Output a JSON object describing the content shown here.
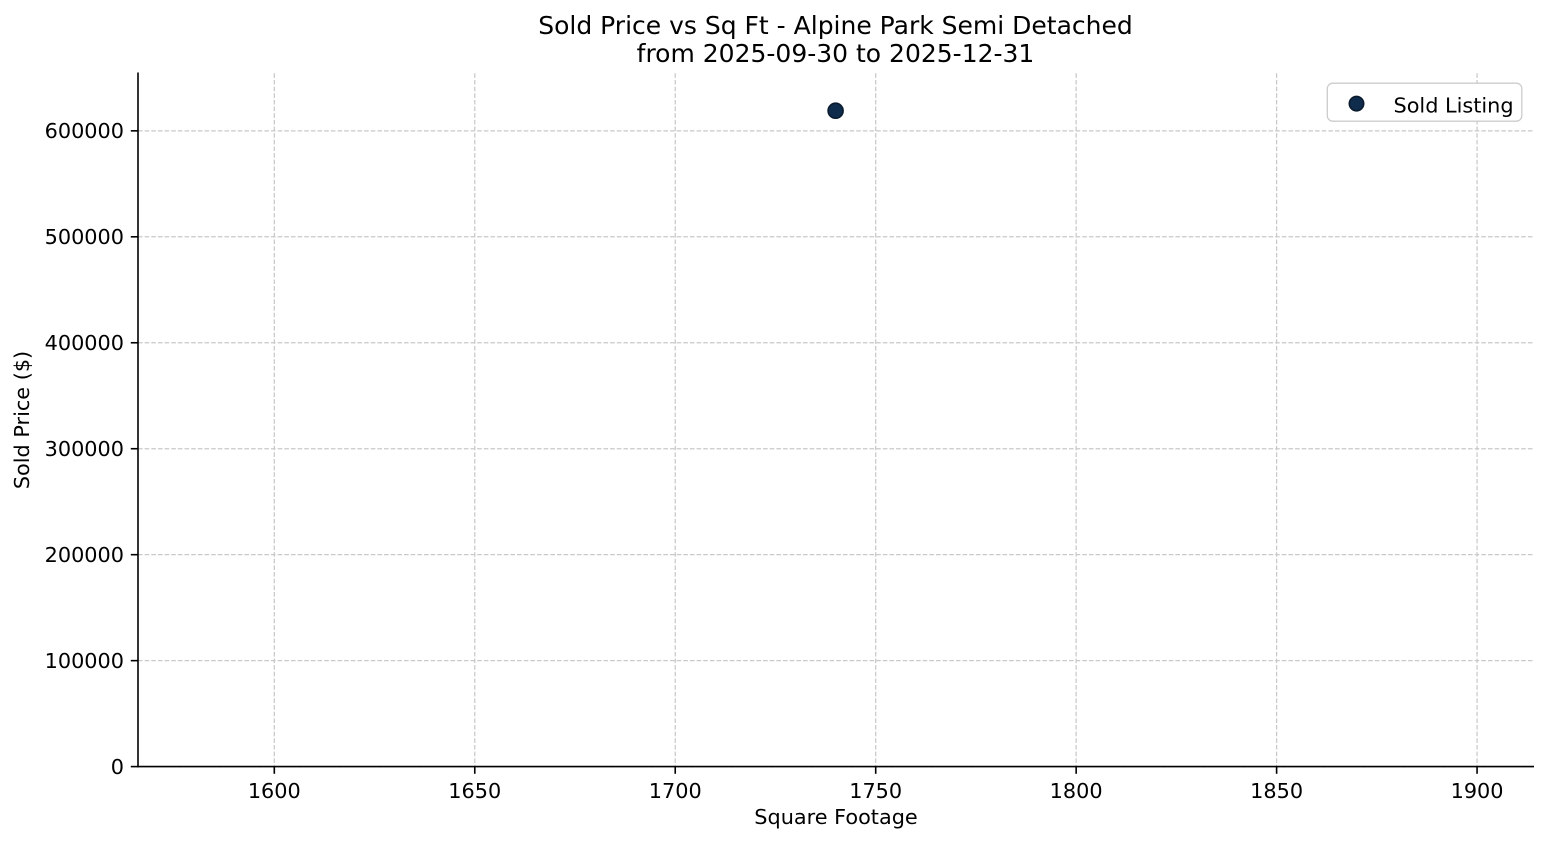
{
  "figure": {
    "background": "#ffffff"
  },
  "chart_data": {
    "type": "scatter",
    "title": "Sold Price vs Sq Ft - Alpine Park Semi Detached",
    "subtitle": "from 2025-09-30 to 2025-12-31",
    "xlabel": "Square Footage",
    "ylabel": "Sold Price ($)",
    "series": [
      {
        "name": "Sold Listing",
        "points": [
          {
            "x": 1740,
            "y": 619000
          }
        ]
      }
    ],
    "xlim": [
      1566,
      1914.2
    ],
    "ylim": [
      0,
      654300
    ],
    "xticks": [
      1600,
      1650,
      1700,
      1750,
      1800,
      1850,
      1900
    ],
    "yticks": [
      0,
      100000,
      200000,
      300000,
      400000,
      500000,
      600000
    ],
    "grid": {
      "visible": true,
      "linestyle": "dashed",
      "color": "#c9c9c9"
    },
    "legend": {
      "position": "upper right",
      "entries": [
        "Sold Listing"
      ]
    },
    "colors": {
      "marker_fill": "#102c4c",
      "marker_edge": "#0a1b2e",
      "axis": "#000000",
      "text": "#000000",
      "grid": "#c9c9c9",
      "legend_border": "#cccccc",
      "legend_background": "#ffffff"
    }
  }
}
